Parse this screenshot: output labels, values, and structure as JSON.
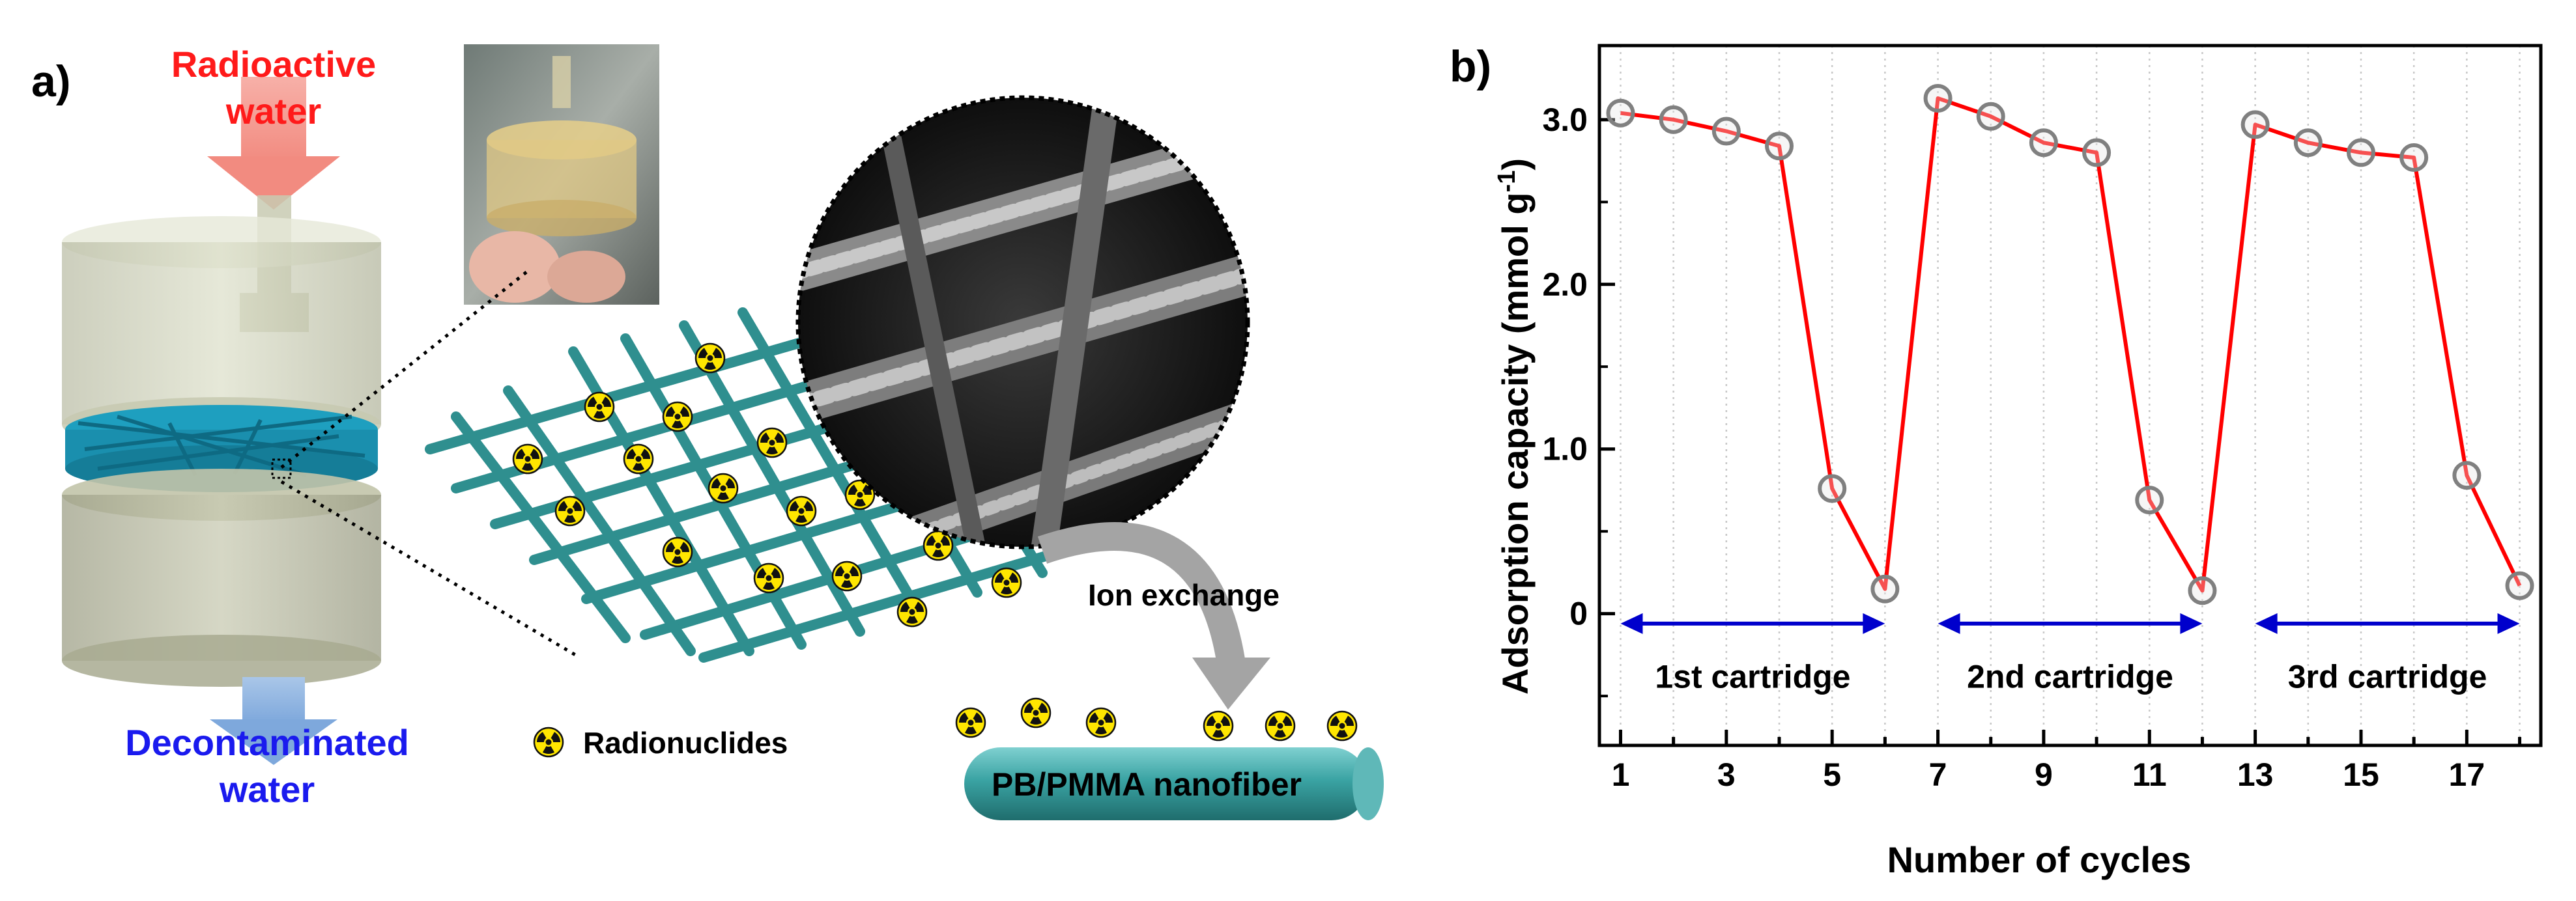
{
  "panel_a": {
    "label": "a)",
    "input_label_line1": "Radioactive",
    "input_label_line2": "water",
    "output_label_line1": "Decontaminated",
    "output_label_line2": "water",
    "legend_text": "Radionuclides",
    "process_label": "Ion exchange",
    "fiber_label": "PB/PMMA nanofiber",
    "colors": {
      "input_text": "#ff1a1a",
      "output_text": "#1a1aee",
      "fiber": "#2f8f8f",
      "symbol": "#ffe600"
    }
  },
  "panel_b": {
    "label": "b)",
    "segment_labels": [
      "1st cartridge",
      "2nd cartridge",
      "3rd cartridge"
    ]
  },
  "chart_data": {
    "type": "line",
    "title": "",
    "xlabel": "Number of cycles",
    "ylabel": "Adsorption capacity (mmol g⁻¹)",
    "ylabel_main": "Adsorption capacity (mmol g",
    "ylabel_sup": "-1",
    "ylabel_close": ")",
    "x": [
      1,
      2,
      3,
      4,
      5,
      6,
      7,
      8,
      9,
      10,
      11,
      12,
      13,
      14,
      15,
      16,
      17,
      18
    ],
    "values": [
      3.04,
      3.0,
      2.93,
      2.84,
      0.76,
      0.15,
      3.13,
      3.02,
      2.86,
      2.8,
      0.69,
      0.14,
      2.97,
      2.86,
      2.8,
      2.77,
      0.84,
      0.17
    ],
    "xticks": [
      1,
      3,
      5,
      7,
      9,
      11,
      13,
      15,
      17
    ],
    "yticks": [
      0,
      1.0,
      2.0,
      3.0
    ],
    "ytick_labels": [
      "0",
      "1.0",
      "2.0",
      "3.0"
    ],
    "xlim": [
      0.6,
      18.4
    ],
    "ylim": [
      -0.8,
      3.45
    ],
    "grid": "vertical dotted",
    "line_color": "#ff0000",
    "marker_edge": "#808080",
    "ranges": [
      {
        "label": "1st cartridge",
        "from": 1,
        "to": 6
      },
      {
        "label": "2nd cartridge",
        "from": 7,
        "to": 12
      },
      {
        "label": "3rd cartridge",
        "from": 13,
        "to": 18
      }
    ],
    "range_color": "#0000cc"
  }
}
